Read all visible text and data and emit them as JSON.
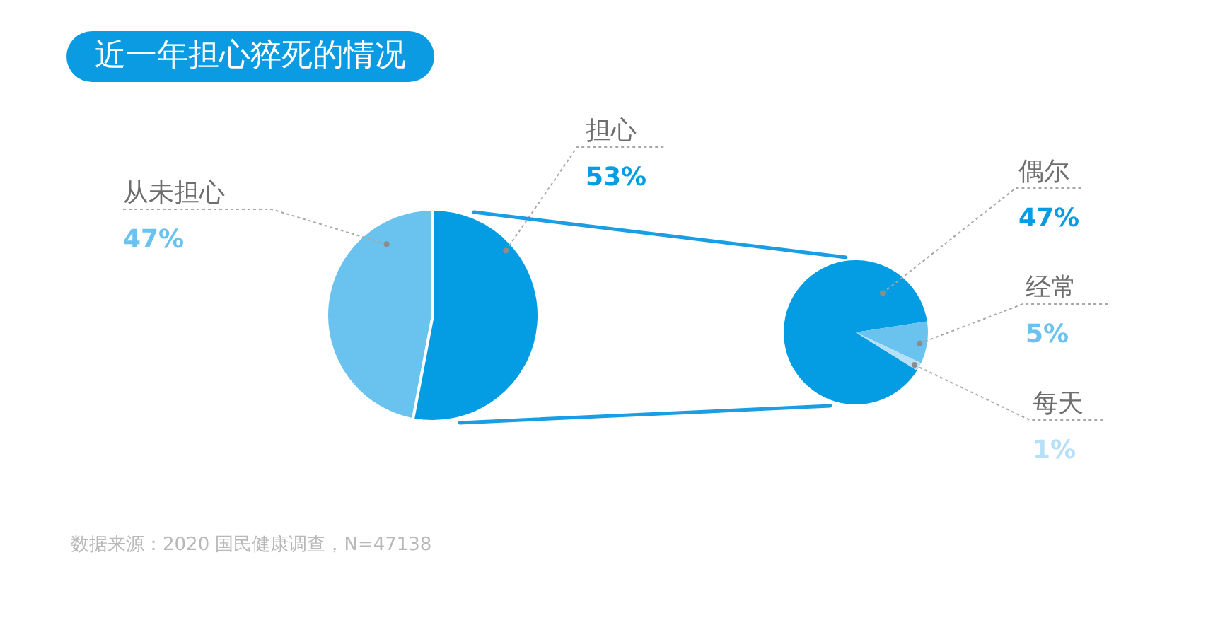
{
  "chart_data": [
    {
      "type": "pie",
      "title": "近一年担心猝死的情况",
      "categories": [
        "从未担心",
        "担心"
      ],
      "values": [
        47,
        53
      ],
      "colors": [
        "#6ac3ee",
        "#049de3"
      ],
      "value_labels": [
        "47%",
        "53%"
      ],
      "annotations": [
        "数据来源：2020 国民健康调查，N=47138"
      ]
    },
    {
      "type": "pie",
      "categories": [
        "偶尔",
        "经常",
        "每天"
      ],
      "values": [
        47,
        5,
        1
      ],
      "colors": [
        "#049de3",
        "#6ac3ee",
        "#b5e0f7"
      ],
      "value_labels": [
        "47%",
        "5%",
        "1%"
      ]
    }
  ]
}
